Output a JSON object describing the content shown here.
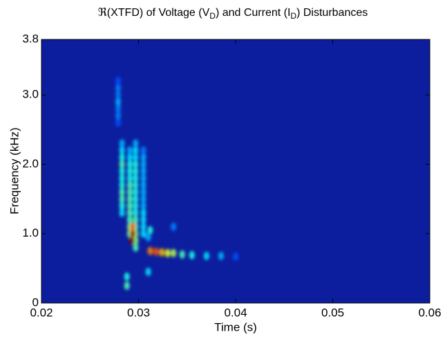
{
  "chart_data": {
    "type": "heatmap",
    "title": [
      "ℜ(XTFD) of  Voltage (V",
      "D",
      ") and Current (I",
      "D",
      ") Disturbances"
    ],
    "xlabel": "Time (s)",
    "ylabel": "Frequency (kHz)",
    "xlim": [
      0.02,
      0.06
    ],
    "xticks": [
      0.02,
      0.03,
      0.04,
      0.05,
      0.06
    ],
    "ylim": [
      0,
      3.8
    ],
    "yticks": [
      0,
      {
        "value": 1,
        "label": "1.0"
      },
      {
        "value": 2,
        "label": "2.0"
      },
      {
        "value": 3,
        "label": "3.0"
      },
      3.8
    ],
    "colormap": "jet",
    "background": "#0c1e9e",
    "series": [
      {
        "x": [
          0.0279,
          0.0279,
          0.0279,
          0.0279,
          0.0279,
          0.0279,
          0.0279
        ],
        "y": [
          2.6,
          2.7,
          2.8,
          2.9,
          3.0,
          3.1,
          3.2
        ],
        "values": [
          0.2,
          0.25,
          0.25,
          0.3,
          0.25,
          0.25,
          0.2
        ]
      },
      {
        "x": [
          0.0283,
          0.0283,
          0.0283,
          0.0283,
          0.0283,
          0.0283,
          0.0283,
          0.0283,
          0.0283,
          0.0283,
          0.0283
        ],
        "y": [
          1.3,
          1.4,
          1.5,
          1.6,
          1.7,
          1.8,
          1.9,
          2.0,
          2.1,
          2.2,
          2.3
        ],
        "values": [
          0.35,
          0.4,
          0.45,
          0.45,
          0.4,
          0.4,
          0.4,
          0.45,
          0.4,
          0.35,
          0.3
        ]
      },
      {
        "x": [
          0.0291,
          0.0291,
          0.0291,
          0.0291,
          0.0291,
          0.0291,
          0.0291,
          0.0291,
          0.0291,
          0.0291,
          0.0291,
          0.0291,
          0.0291
        ],
        "y": [
          1.0,
          1.1,
          1.2,
          1.3,
          1.4,
          1.5,
          1.6,
          1.7,
          1.8,
          1.9,
          2.0,
          2.1,
          2.2
        ],
        "values": [
          0.5,
          0.5,
          0.45,
          0.45,
          0.45,
          0.45,
          0.45,
          0.45,
          0.4,
          0.4,
          0.4,
          0.35,
          0.3
        ]
      },
      {
        "x": [
          0.0297,
          0.0297,
          0.0297,
          0.0297,
          0.0297,
          0.0297,
          0.0297,
          0.0297,
          0.0297,
          0.0297,
          0.0297,
          0.0297,
          0.0297,
          0.0297,
          0.0297,
          0.0297
        ],
        "y": [
          0.8,
          0.9,
          1.0,
          1.1,
          1.2,
          1.3,
          1.4,
          1.5,
          1.6,
          1.7,
          1.8,
          1.9,
          2.0,
          2.1,
          2.2,
          2.3
        ],
        "values": [
          0.45,
          0.5,
          0.5,
          0.45,
          0.45,
          0.4,
          0.4,
          0.4,
          0.4,
          0.4,
          0.4,
          0.4,
          0.4,
          0.35,
          0.35,
          0.3
        ]
      },
      {
        "x": [
          0.0305,
          0.0305,
          0.0305,
          0.0305,
          0.0305,
          0.0305,
          0.0305,
          0.0305,
          0.0305,
          0.0305,
          0.0305,
          0.0305,
          0.0305
        ],
        "y": [
          1.0,
          1.1,
          1.2,
          1.3,
          1.4,
          1.5,
          1.6,
          1.7,
          1.8,
          1.9,
          2.0,
          2.1,
          2.2
        ],
        "values": [
          0.35,
          0.35,
          0.35,
          0.35,
          0.3,
          0.3,
          0.3,
          0.3,
          0.3,
          0.3,
          0.3,
          0.3,
          0.25
        ]
      },
      {
        "x": [
          0.0293,
          0.0294,
          0.0294
        ],
        "y": [
          0.9,
          1.0,
          1.1
        ],
        "values": [
          1.0,
          0.95,
          0.8
        ]
      },
      {
        "x": [
          0.0312,
          0.0318,
          0.0324,
          0.033,
          0.0336,
          0.0345,
          0.0355,
          0.037,
          0.0385,
          0.04
        ],
        "y": [
          0.75,
          0.74,
          0.73,
          0.72,
          0.72,
          0.7,
          0.69,
          0.68,
          0.68,
          0.67
        ],
        "values": [
          0.75,
          0.8,
          0.7,
          0.6,
          0.55,
          0.45,
          0.4,
          0.35,
          0.3,
          0.2
        ]
      },
      {
        "x": [
          0.0288,
          0.0288,
          0.031,
          0.0312,
          0.0336,
          0.031
        ],
        "y": [
          0.25,
          0.38,
          0.45,
          1.05,
          1.1,
          0.95
        ],
        "values": [
          0.45,
          0.4,
          0.35,
          0.4,
          0.25,
          0.3
        ]
      }
    ]
  }
}
